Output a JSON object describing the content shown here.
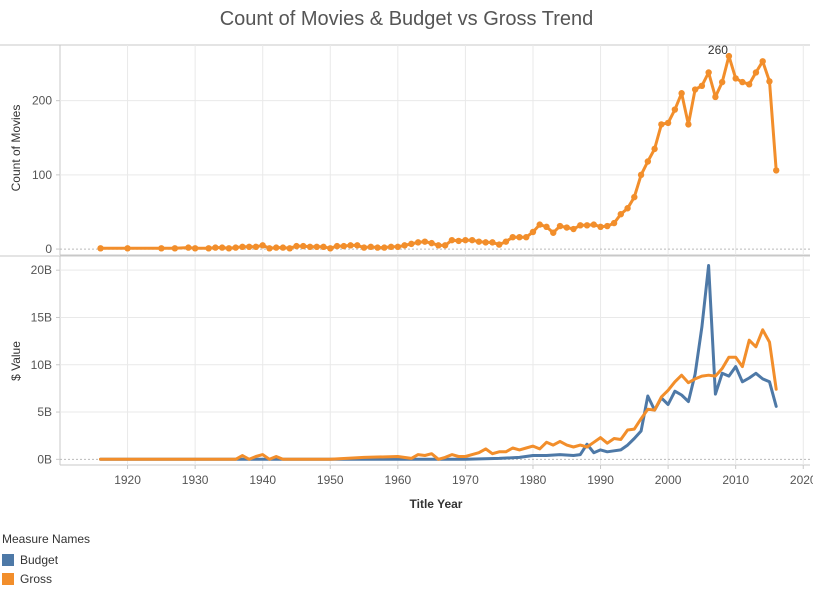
{
  "colors": {
    "budget": "#4e79a7",
    "gross": "#f28e2b",
    "gridline": "#e9e9e9",
    "axis": "#c8c8c8",
    "zeroline": "#bbbbbb"
  },
  "chart_data": [
    {
      "type": "line",
      "title": "Count of Movies & Budget vs Gross Trend",
      "xlabel": "Title Year",
      "ylabel": "Count of Movies",
      "xlim": [
        1910,
        2021
      ],
      "ylim": [
        -8,
        275
      ],
      "xticks": [
        "1920",
        "1930",
        "1940",
        "1950",
        "1960",
        "1970",
        "1980",
        "1990",
        "2000",
        "2010",
        "2020"
      ],
      "yticks": [
        {
          "value": 0,
          "label": "0"
        },
        {
          "value": 100,
          "label": "100"
        },
        {
          "value": 200,
          "label": "200"
        }
      ],
      "markers": true,
      "annotation": {
        "x": 2009,
        "y": 260,
        "label": "260"
      },
      "series": [
        {
          "color": "#f28e2b",
          "x": [
            1916,
            1920,
            1925,
            1927,
            1929,
            1930,
            1932,
            1933,
            1934,
            1935,
            1936,
            1937,
            1938,
            1939,
            1940,
            1941,
            1942,
            1943,
            1944,
            1945,
            1946,
            1947,
            1948,
            1949,
            1950,
            1951,
            1952,
            1953,
            1954,
            1955,
            1956,
            1957,
            1958,
            1959,
            1960,
            1961,
            1962,
            1963,
            1964,
            1965,
            1966,
            1967,
            1968,
            1969,
            1970,
            1971,
            1972,
            1973,
            1974,
            1975,
            1976,
            1977,
            1978,
            1979,
            1980,
            1981,
            1982,
            1983,
            1984,
            1985,
            1986,
            1987,
            1988,
            1989,
            1990,
            1991,
            1992,
            1993,
            1994,
            1995,
            1996,
            1997,
            1998,
            1999,
            2000,
            2001,
            2002,
            2003,
            2004,
            2005,
            2006,
            2007,
            2008,
            2009,
            2010,
            2011,
            2012,
            2013,
            2014,
            2015,
            2016
          ],
          "y": [
            1,
            1,
            1,
            1,
            2,
            1,
            1,
            2,
            2,
            1,
            2,
            3,
            3,
            3,
            5,
            1,
            2,
            2,
            1,
            4,
            4,
            3,
            3,
            3,
            1,
            4,
            4,
            5,
            5,
            2,
            3,
            2,
            2,
            3,
            3,
            5,
            7,
            9,
            10,
            8,
            5,
            5,
            12,
            11,
            12,
            12,
            10,
            9,
            9,
            6,
            10,
            16,
            16,
            16,
            23,
            33,
            30,
            22,
            31,
            29,
            27,
            32,
            32,
            33,
            30,
            31,
            35,
            47,
            55,
            70,
            100,
            118,
            135,
            168,
            170,
            188,
            210,
            168,
            215,
            220,
            238,
            205,
            225,
            260,
            230,
            225,
            222,
            238,
            253,
            226,
            106
          ]
        }
      ]
    },
    {
      "type": "line",
      "title": "",
      "xlabel": "Title Year",
      "ylabel": "$ Value",
      "xlim": [
        1910,
        2021
      ],
      "ylim": [
        -0.6,
        21.5
      ],
      "unit": "billions",
      "xticks": [
        "1920",
        "1930",
        "1940",
        "1950",
        "1960",
        "1970",
        "1980",
        "1990",
        "2000",
        "2010",
        "2020"
      ],
      "yticks": [
        {
          "value": 0,
          "label": "0B"
        },
        {
          "value": 5,
          "label": "5B"
        },
        {
          "value": 10,
          "label": "10B"
        },
        {
          "value": 15,
          "label": "15B"
        },
        {
          "value": 20,
          "label": "20B"
        }
      ],
      "markers": false,
      "series": [
        {
          "name": "Budget",
          "color": "#4e79a7",
          "x": [
            1916,
            1925,
            1930,
            1935,
            1940,
            1945,
            1950,
            1955,
            1960,
            1965,
            1970,
            1975,
            1978,
            1980,
            1982,
            1984,
            1986,
            1987,
            1988,
            1989,
            1990,
            1991,
            1992,
            1993,
            1994,
            1995,
            1996,
            1997,
            1998,
            1999,
            2000,
            2001,
            2002,
            2003,
            2004,
            2005,
            2006,
            2007,
            2008,
            2009,
            2010,
            2011,
            2012,
            2013,
            2014,
            2015,
            2016
          ],
          "y": [
            0,
            0,
            0,
            0,
            0,
            0,
            0,
            0,
            0,
            0,
            0,
            0.1,
            0.2,
            0.4,
            0.4,
            0.5,
            0.4,
            0.5,
            1.6,
            0.7,
            1.0,
            0.8,
            0.9,
            1.0,
            1.5,
            2.2,
            3.0,
            6.7,
            5.2,
            6.5,
            5.8,
            7.2,
            6.8,
            6.1,
            9.0,
            14.0,
            20.5,
            6.9,
            9.1,
            8.8,
            9.8,
            8.2,
            8.6,
            9.1,
            8.5,
            8.2,
            5.6
          ]
        },
        {
          "name": "Gross",
          "color": "#f28e2b",
          "x": [
            1916,
            1925,
            1930,
            1936,
            1937,
            1938,
            1939,
            1940,
            1941,
            1942,
            1943,
            1944,
            1950,
            1955,
            1960,
            1962,
            1963,
            1964,
            1965,
            1966,
            1967,
            1968,
            1969,
            1970,
            1971,
            1972,
            1973,
            1974,
            1975,
            1976,
            1977,
            1978,
            1979,
            1980,
            1981,
            1982,
            1983,
            1984,
            1985,
            1986,
            1987,
            1988,
            1989,
            1990,
            1991,
            1992,
            1993,
            1994,
            1995,
            1996,
            1997,
            1998,
            1999,
            2000,
            2001,
            2002,
            2003,
            2004,
            2005,
            2006,
            2007,
            2008,
            2009,
            2010,
            2011,
            2012,
            2013,
            2014,
            2015,
            2016
          ],
          "y": [
            0,
            0,
            0,
            0,
            0.4,
            0,
            0.3,
            0.5,
            0,
            0.3,
            0,
            0,
            0,
            0.2,
            0.3,
            0.1,
            0.5,
            0.4,
            0.6,
            0,
            0.2,
            0.5,
            0.3,
            0.3,
            0.5,
            0.7,
            1.1,
            0.6,
            0.8,
            0.8,
            1.2,
            1.0,
            1.2,
            1.4,
            1.1,
            1.8,
            1.5,
            1.9,
            1.5,
            1.3,
            1.5,
            1.3,
            1.8,
            2.3,
            1.7,
            2.2,
            2.1,
            3.1,
            3.2,
            4.3,
            5.3,
            5.2,
            6.6,
            7.3,
            8.2,
            8.9,
            8.1,
            8.5,
            8.8,
            8.9,
            8.8,
            9.6,
            10.8,
            10.8,
            9.8,
            12.6,
            11.9,
            13.7,
            12.4,
            7.4
          ]
        }
      ]
    }
  ],
  "legend": {
    "title": "Measure Names",
    "items": [
      {
        "label": "Budget",
        "color": "#4e79a7"
      },
      {
        "label": "Gross",
        "color": "#f28e2b"
      }
    ]
  }
}
